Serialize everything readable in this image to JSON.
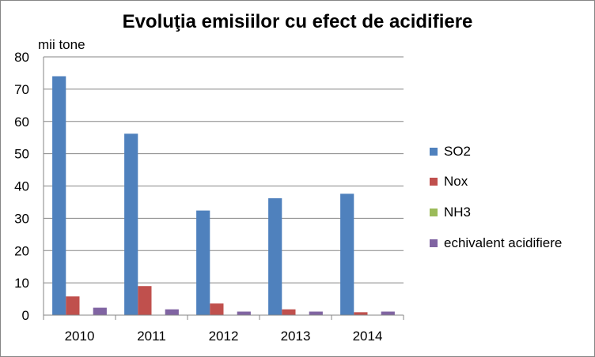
{
  "chart_data": {
    "type": "bar",
    "title": "Evoluţia emisiilor cu efect de acidifiere",
    "ylabel": "mii tone",
    "xlabel": "",
    "categories": [
      "2010",
      "2011",
      "2012",
      "2013",
      "2014"
    ],
    "yticks": [
      "0",
      "10",
      "20",
      "30",
      "40",
      "50",
      "60",
      "70",
      "80"
    ],
    "ylim": [
      0,
      80
    ],
    "grid": true,
    "legend_position": "right",
    "series": [
      {
        "name": "SO2",
        "color": "#4F81BD",
        "values": [
          74,
          56.2,
          32.4,
          36.2,
          37.6
        ]
      },
      {
        "name": "Nox",
        "color": "#C0504D",
        "values": [
          5.8,
          9,
          3.6,
          1.8,
          0.9
        ]
      },
      {
        "name": "NH3",
        "color": "#9BBB59",
        "values": [
          0,
          0,
          0,
          0,
          0
        ]
      },
      {
        "name": "echivalent acidifiere",
        "color": "#8064A2",
        "values": [
          2.3,
          1.8,
          1.1,
          1.1,
          1.1
        ]
      }
    ]
  }
}
